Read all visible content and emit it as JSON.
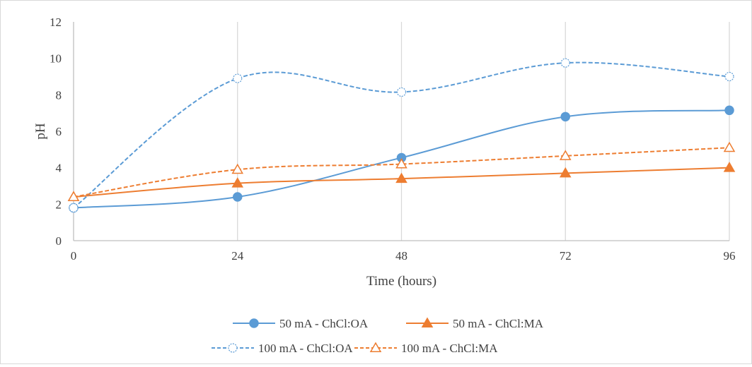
{
  "chart_data": {
    "type": "line",
    "xlabel": "Time (hours)",
    "ylabel": "pH",
    "x": [
      0,
      24,
      48,
      72,
      96
    ],
    "xlim": [
      0,
      96
    ],
    "ylim": [
      0,
      12
    ],
    "yticks": [
      0,
      2,
      4,
      6,
      8,
      10,
      12
    ],
    "grid": "vertical",
    "legend_position": "bottom",
    "series": [
      {
        "name": "50 mA - ChCl:OA",
        "values": [
          1.8,
          2.4,
          4.55,
          6.8,
          7.15
        ],
        "color": "#5b9bd5",
        "dash": "solid",
        "marker": "filled-circle"
      },
      {
        "name": "50 mA - ChCl:MA",
        "values": [
          2.4,
          3.15,
          3.4,
          3.7,
          4.0
        ],
        "color": "#ed7d31",
        "dash": "solid",
        "marker": "filled-triangle"
      },
      {
        "name": "100 mA - ChCl:OA",
        "values": [
          1.8,
          8.9,
          8.15,
          9.75,
          9.0
        ],
        "color": "#5b9bd5",
        "dash": "dashed",
        "marker": "open-circle"
      },
      {
        "name": "100 mA - ChCl:MA",
        "values": [
          2.4,
          3.9,
          4.2,
          4.65,
          5.1
        ],
        "color": "#ed7d31",
        "dash": "dashed",
        "marker": "open-triangle"
      }
    ]
  }
}
